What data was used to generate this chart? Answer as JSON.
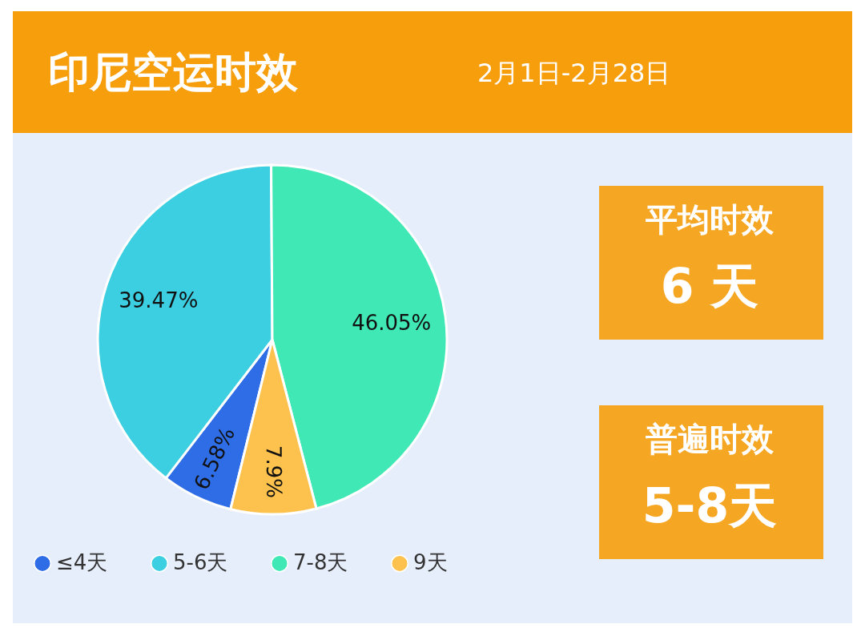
{
  "chart_data": {
    "type": "pie",
    "title": "印尼空运时效",
    "subtitle": "2月1日-2月28日",
    "categories": [
      "≤4天",
      "5-6天",
      "7-8天",
      "9天"
    ],
    "values": [
      6.58,
      39.47,
      46.05,
      7.9
    ],
    "value_labels": [
      "6.58%",
      "39.47%",
      "46.05%",
      "7.9%"
    ],
    "colors": [
      "#2f6de6",
      "#3ccfe2",
      "#40e8b5",
      "#fcc24d"
    ],
    "legend": "bottom left",
    "annotations": [
      "平均时效",
      "6 天",
      "普遍时效",
      "5-8天"
    ]
  }
}
